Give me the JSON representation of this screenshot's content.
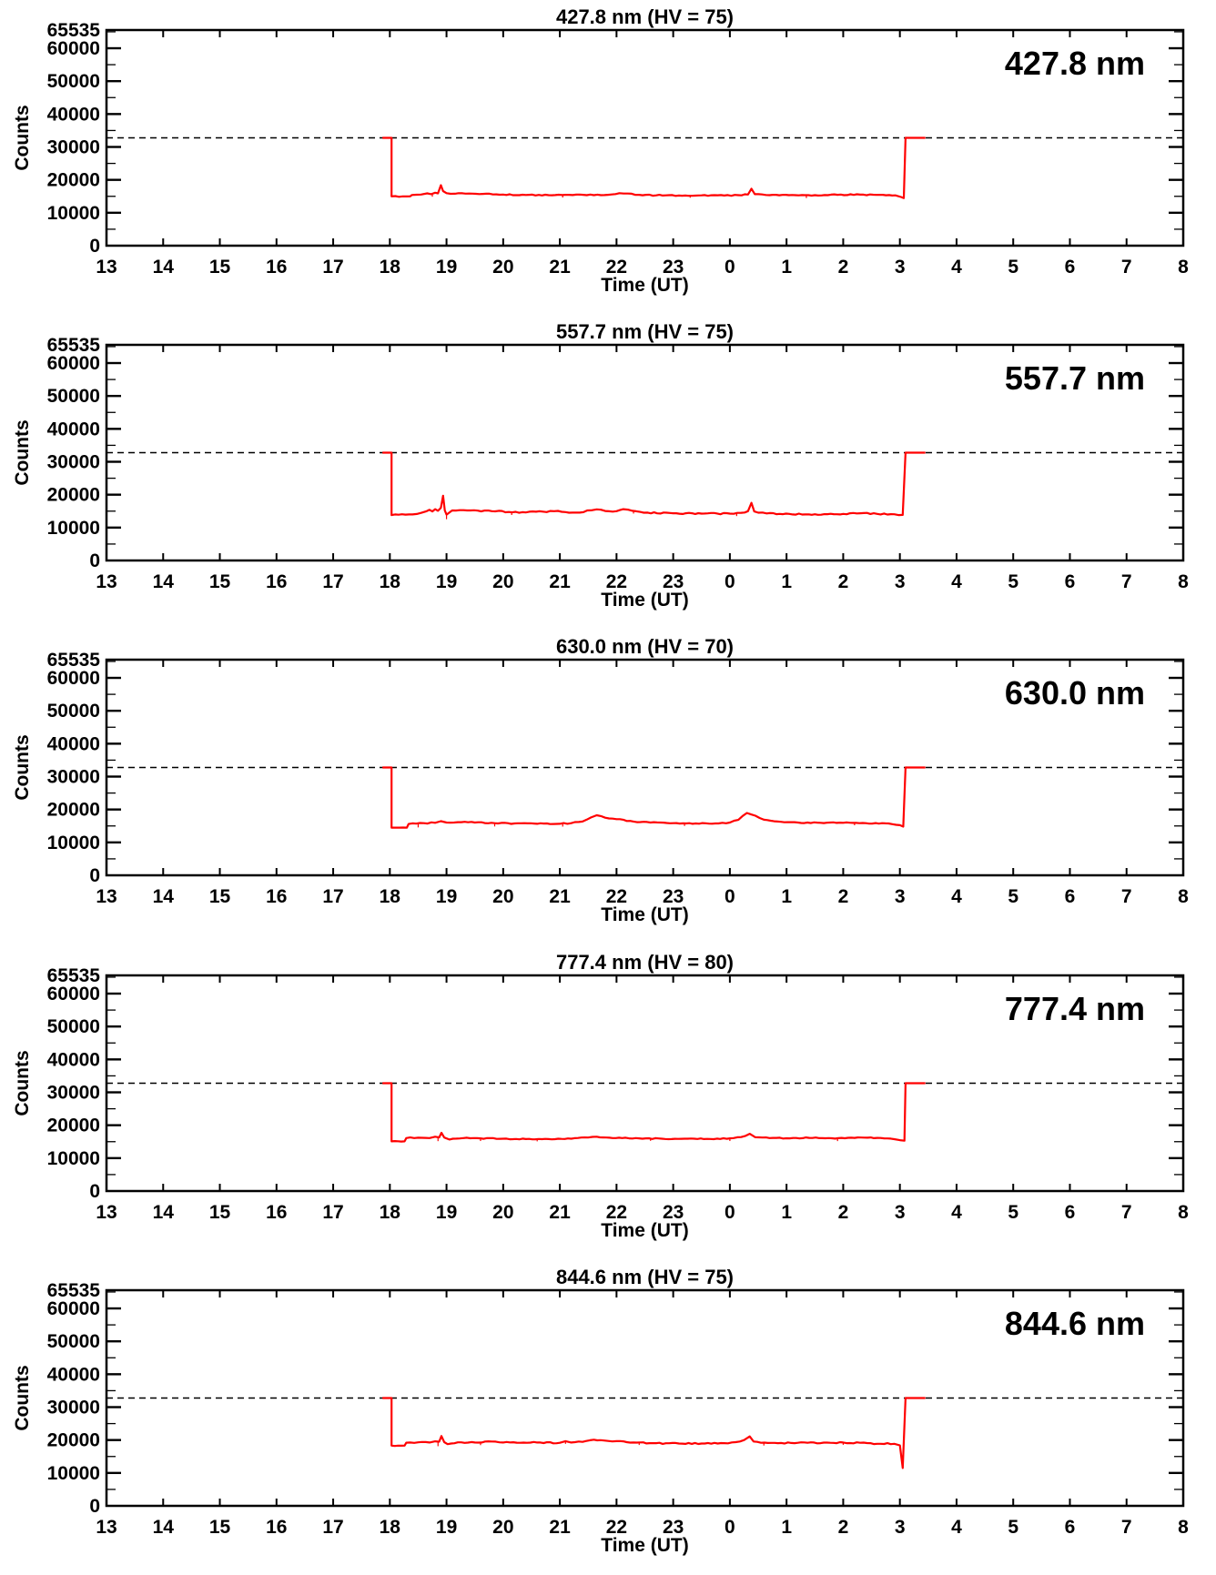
{
  "colors": {
    "background": "#ffffff",
    "axis": "#000000",
    "series": "#ff0000",
    "threshold_line": "#000000"
  },
  "axes_common": {
    "xlabel": "Time (UT)",
    "ylabel": "Counts",
    "x_tick_labels": [
      "13",
      "14",
      "15",
      "16",
      "17",
      "18",
      "19",
      "20",
      "21",
      "22",
      "23",
      "0",
      "1",
      "2",
      "3",
      "4",
      "5",
      "6",
      "7",
      "8"
    ],
    "x_start_hour": 13,
    "x_span_hours": 19,
    "y_tick_labels": [
      "65535",
      "60000",
      "50000",
      "40000",
      "30000",
      "20000",
      "10000",
      "0"
    ],
    "y_tick_values": [
      65535,
      60000,
      50000,
      40000,
      30000,
      20000,
      10000,
      0
    ],
    "y_minor_step": 5000,
    "ylim": [
      0,
      65535
    ],
    "threshold": 32767,
    "grid": false,
    "legend": "none"
  },
  "chart_data": [
    {
      "type": "line",
      "title": "427.8 nm (HV = 75)",
      "inplot_label": "427.8 nm",
      "wavelength_nm": "427.8",
      "hv": "75",
      "noise_amp": 160,
      "series": [
        {
          "name": "counts",
          "color": "#ff0000",
          "points": [
            [
              17.87,
              32767
            ],
            [
              18.03,
              32767
            ],
            [
              18.03,
              15000
            ],
            [
              18.36,
              15000
            ],
            [
              18.39,
              15400
            ],
            [
              18.55,
              15550
            ],
            [
              18.66,
              15900
            ],
            [
              18.73,
              15650
            ],
            [
              18.8,
              16100
            ],
            [
              18.85,
              15900
            ],
            [
              18.9,
              18400
            ],
            [
              18.94,
              16600
            ],
            [
              19.0,
              15950
            ],
            [
              19.15,
              15800
            ],
            [
              19.4,
              15850
            ],
            [
              19.7,
              15800
            ],
            [
              20.0,
              15550
            ],
            [
              20.4,
              15400
            ],
            [
              20.8,
              15350
            ],
            [
              21.1,
              15450
            ],
            [
              21.35,
              15550
            ],
            [
              21.6,
              15350
            ],
            [
              21.85,
              15450
            ],
            [
              22.05,
              15950
            ],
            [
              22.2,
              15850
            ],
            [
              22.4,
              15450
            ],
            [
              22.7,
              15300
            ],
            [
              23.1,
              15250
            ],
            [
              23.5,
              15300
            ],
            [
              23.9,
              15250
            ],
            [
              24.15,
              15350
            ],
            [
              24.32,
              15550
            ],
            [
              24.38,
              17300
            ],
            [
              24.44,
              15650
            ],
            [
              24.7,
              15350
            ],
            [
              25.1,
              15400
            ],
            [
              25.5,
              15350
            ],
            [
              25.9,
              15450
            ],
            [
              26.3,
              15500
            ],
            [
              26.7,
              15450
            ],
            [
              26.92,
              15300
            ],
            [
              27.02,
              14800
            ],
            [
              27.07,
              14450
            ],
            [
              27.1,
              32767
            ],
            [
              27.45,
              32767
            ]
          ]
        }
      ],
      "dropouts": [
        [
          18.75,
          900
        ],
        [
          21.05,
          800
        ],
        [
          23.3,
          700
        ],
        [
          25.35,
          900
        ]
      ]
    },
    {
      "type": "line",
      "title": "557.7 nm (HV = 75)",
      "inplot_label": "557.7 nm",
      "wavelength_nm": "557.7",
      "hv": "75",
      "noise_amp": 200,
      "series": [
        {
          "name": "counts",
          "color": "#ff0000",
          "points": [
            [
              17.87,
              32767
            ],
            [
              18.03,
              32767
            ],
            [
              18.03,
              13800
            ],
            [
              18.4,
              14000
            ],
            [
              18.55,
              14450
            ],
            [
              18.65,
              15000
            ],
            [
              18.7,
              15400
            ],
            [
              18.75,
              14900
            ],
            [
              18.8,
              15600
            ],
            [
              18.85,
              15100
            ],
            [
              18.9,
              16000
            ],
            [
              18.94,
              19700
            ],
            [
              18.97,
              15200
            ],
            [
              19.0,
              13950
            ],
            [
              19.1,
              15200
            ],
            [
              19.3,
              15300
            ],
            [
              19.55,
              15150
            ],
            [
              19.8,
              15000
            ],
            [
              20.1,
              14750
            ],
            [
              20.4,
              14600
            ],
            [
              20.7,
              14850
            ],
            [
              20.9,
              15000
            ],
            [
              21.1,
              14700
            ],
            [
              21.35,
              14550
            ],
            [
              21.55,
              15250
            ],
            [
              21.65,
              15550
            ],
            [
              21.8,
              15050
            ],
            [
              22.0,
              15000
            ],
            [
              22.12,
              15600
            ],
            [
              22.28,
              15100
            ],
            [
              22.55,
              14550
            ],
            [
              23.0,
              14350
            ],
            [
              23.5,
              14250
            ],
            [
              24.0,
              14250
            ],
            [
              24.2,
              14500
            ],
            [
              24.32,
              15000
            ],
            [
              24.38,
              17500
            ],
            [
              24.43,
              14900
            ],
            [
              24.65,
              14300
            ],
            [
              25.05,
              14150
            ],
            [
              25.5,
              14050
            ],
            [
              26.0,
              14150
            ],
            [
              26.3,
              14350
            ],
            [
              26.6,
              14150
            ],
            [
              26.9,
              14050
            ],
            [
              27.05,
              13850
            ],
            [
              27.1,
              32767
            ],
            [
              27.45,
              32767
            ]
          ]
        }
      ],
      "dropouts": [
        [
          19.0,
          1400
        ],
        [
          20.15,
          900
        ],
        [
          22.3,
          800
        ],
        [
          24.12,
          900
        ]
      ]
    },
    {
      "type": "line",
      "title": "630.0 nm (HV = 70)",
      "inplot_label": "630.0 nm",
      "wavelength_nm": "630.0",
      "hv": "70",
      "noise_amp": 170,
      "series": [
        {
          "name": "counts",
          "color": "#ff0000",
          "points": [
            [
              17.87,
              32767
            ],
            [
              18.03,
              32767
            ],
            [
              18.03,
              14500
            ],
            [
              18.3,
              14500
            ],
            [
              18.33,
              15600
            ],
            [
              18.6,
              15850
            ],
            [
              18.8,
              15950
            ],
            [
              18.9,
              16450
            ],
            [
              19.0,
              16050
            ],
            [
              19.2,
              16150
            ],
            [
              19.5,
              16050
            ],
            [
              19.85,
              15850
            ],
            [
              20.2,
              15750
            ],
            [
              20.6,
              15650
            ],
            [
              21.0,
              15650
            ],
            [
              21.2,
              15850
            ],
            [
              21.4,
              16350
            ],
            [
              21.55,
              17600
            ],
            [
              21.65,
              18250
            ],
            [
              21.8,
              17500
            ],
            [
              22.0,
              17050
            ],
            [
              22.3,
              16350
            ],
            [
              22.6,
              16050
            ],
            [
              23.0,
              15850
            ],
            [
              23.4,
              15750
            ],
            [
              23.8,
              15750
            ],
            [
              24.0,
              16050
            ],
            [
              24.15,
              16850
            ],
            [
              24.3,
              18950
            ],
            [
              24.45,
              18100
            ],
            [
              24.6,
              16900
            ],
            [
              24.9,
              16250
            ],
            [
              25.2,
              16050
            ],
            [
              25.6,
              15950
            ],
            [
              26.0,
              15950
            ],
            [
              26.4,
              15850
            ],
            [
              26.8,
              15750
            ],
            [
              27.0,
              15250
            ],
            [
              27.06,
              14800
            ],
            [
              27.1,
              32767
            ],
            [
              27.45,
              32767
            ]
          ]
        }
      ],
      "dropouts": [
        [
          18.5,
          1200
        ],
        [
          19.85,
          1000
        ],
        [
          21.05,
          900
        ],
        [
          23.2,
          800
        ],
        [
          26.2,
          700
        ]
      ]
    },
    {
      "type": "line",
      "title": "777.4 nm (HV = 80)",
      "inplot_label": "777.4 nm",
      "wavelength_nm": "777.4",
      "hv": "80",
      "noise_amp": 150,
      "series": [
        {
          "name": "counts",
          "color": "#ff0000",
          "points": [
            [
              17.87,
              32767
            ],
            [
              18.03,
              32767
            ],
            [
              18.03,
              15100
            ],
            [
              18.26,
              15100
            ],
            [
              18.29,
              16100
            ],
            [
              18.5,
              16200
            ],
            [
              18.7,
              16100
            ],
            [
              18.8,
              16500
            ],
            [
              18.87,
              16300
            ],
            [
              18.91,
              17700
            ],
            [
              18.96,
              16250
            ],
            [
              19.05,
              15650
            ],
            [
              19.3,
              16100
            ],
            [
              19.6,
              16000
            ],
            [
              20.0,
              15900
            ],
            [
              20.4,
              15800
            ],
            [
              20.8,
              15800
            ],
            [
              21.2,
              15900
            ],
            [
              21.5,
              16250
            ],
            [
              21.65,
              16500
            ],
            [
              21.82,
              16250
            ],
            [
              22.1,
              16100
            ],
            [
              22.4,
              16000
            ],
            [
              22.8,
              15900
            ],
            [
              23.2,
              15900
            ],
            [
              23.6,
              15850
            ],
            [
              24.0,
              16000
            ],
            [
              24.2,
              16400
            ],
            [
              24.35,
              17400
            ],
            [
              24.45,
              16350
            ],
            [
              24.7,
              16100
            ],
            [
              25.0,
              16050
            ],
            [
              25.4,
              16150
            ],
            [
              25.8,
              16050
            ],
            [
              26.2,
              16150
            ],
            [
              26.6,
              16150
            ],
            [
              26.9,
              15750
            ],
            [
              27.0,
              15450
            ],
            [
              27.08,
              15300
            ],
            [
              27.1,
              32767
            ],
            [
              27.45,
              32767
            ]
          ]
        }
      ],
      "dropouts": [
        [
          18.85,
          1200
        ],
        [
          19.6,
          800
        ],
        [
          20.6,
          700
        ],
        [
          22.6,
          700
        ],
        [
          24.0,
          800
        ],
        [
          25.9,
          900
        ]
      ]
    },
    {
      "type": "line",
      "title": "844.6 nm (HV = 75)",
      "inplot_label": "844.6 nm",
      "wavelength_nm": "844.6",
      "hv": "75",
      "noise_amp": 200,
      "series": [
        {
          "name": "counts",
          "color": "#ff0000",
          "points": [
            [
              17.87,
              32767
            ],
            [
              18.03,
              32767
            ],
            [
              18.03,
              18300
            ],
            [
              18.26,
              18300
            ],
            [
              18.29,
              19200
            ],
            [
              18.5,
              19300
            ],
            [
              18.7,
              19250
            ],
            [
              18.8,
              19600
            ],
            [
              18.87,
              19500
            ],
            [
              18.91,
              21200
            ],
            [
              18.96,
              19350
            ],
            [
              19.02,
              18750
            ],
            [
              19.2,
              19300
            ],
            [
              19.5,
              19250
            ],
            [
              19.8,
              19550
            ],
            [
              20.0,
              19250
            ],
            [
              20.3,
              19150
            ],
            [
              20.6,
              19250
            ],
            [
              21.0,
              19150
            ],
            [
              21.1,
              19650
            ],
            [
              21.2,
              19250
            ],
            [
              21.4,
              19450
            ],
            [
              21.6,
              20100
            ],
            [
              21.78,
              19850
            ],
            [
              22.0,
              19650
            ],
            [
              22.3,
              19250
            ],
            [
              22.7,
              19050
            ],
            [
              23.1,
              18950
            ],
            [
              23.5,
              18950
            ],
            [
              23.9,
              19050
            ],
            [
              24.1,
              19350
            ],
            [
              24.25,
              20000
            ],
            [
              24.35,
              21100
            ],
            [
              24.42,
              19550
            ],
            [
              24.55,
              19150
            ],
            [
              24.85,
              19050
            ],
            [
              25.2,
              19150
            ],
            [
              25.6,
              19050
            ],
            [
              26.0,
              19250
            ],
            [
              26.3,
              19150
            ],
            [
              26.6,
              18850
            ],
            [
              26.9,
              18850
            ],
            [
              27.0,
              18400
            ],
            [
              27.05,
              11500
            ],
            [
              27.1,
              32767
            ],
            [
              27.45,
              32767
            ]
          ]
        }
      ],
      "dropouts": [
        [
          18.85,
          1400
        ],
        [
          19.6,
          900
        ],
        [
          21.1,
          800
        ],
        [
          22.4,
          700
        ],
        [
          24.6,
          800
        ],
        [
          26.0,
          700
        ]
      ]
    }
  ]
}
